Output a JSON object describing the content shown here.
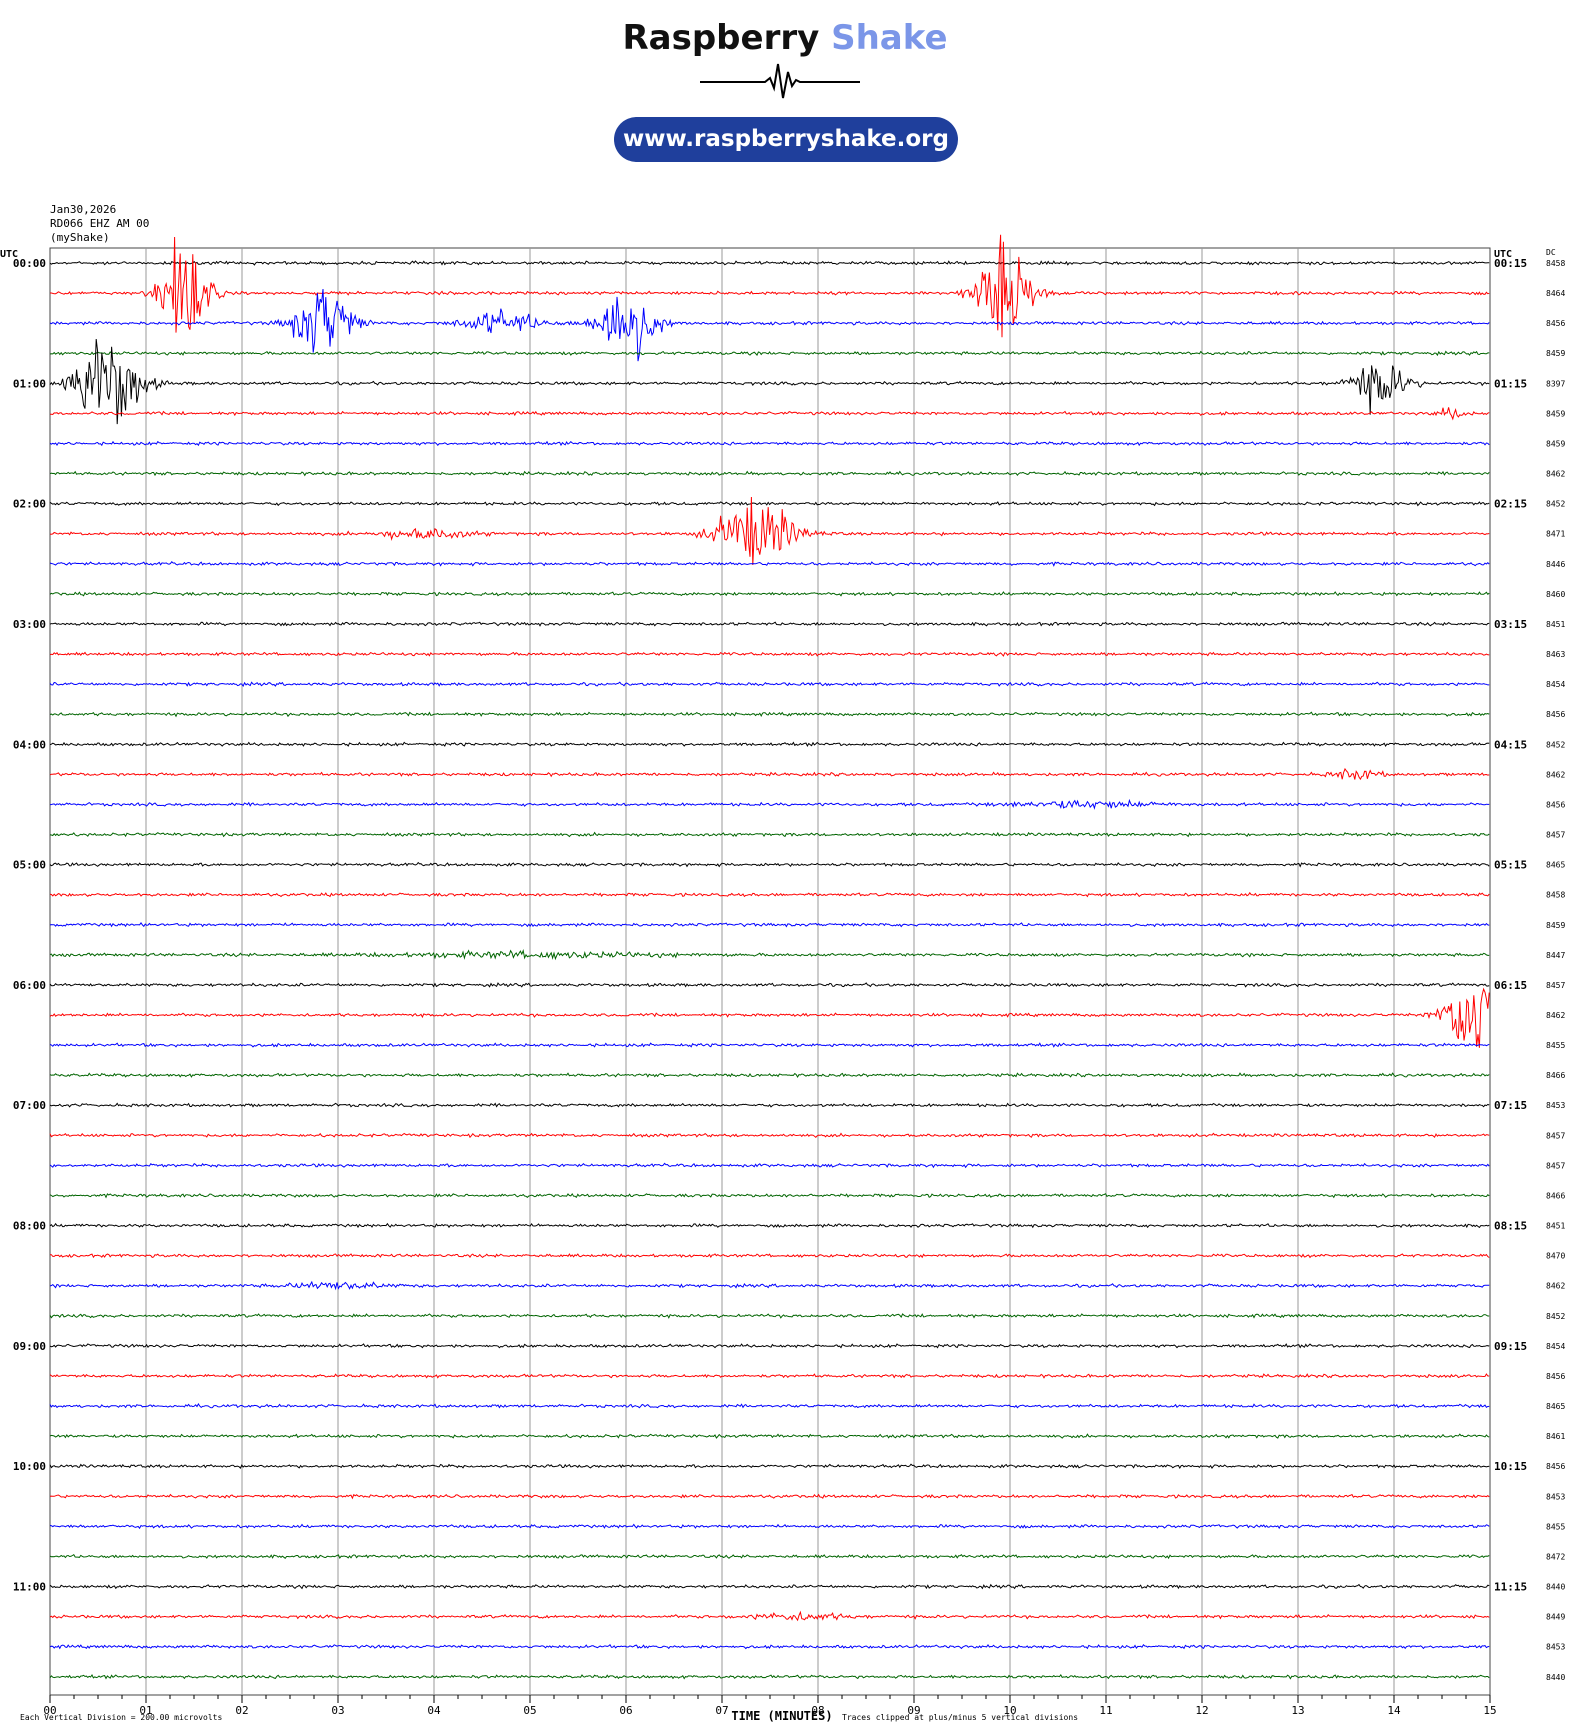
{
  "header": {
    "brand_part1": "Raspberry",
    "brand_part2": "Shake",
    "url": "www.raspberryshake.org"
  },
  "station": {
    "date": "Jan30,2026",
    "channel": "RD066 EHZ AM 00",
    "source": "(myShake)"
  },
  "axis": {
    "left_unit": "UTC",
    "right_unit": "UTC",
    "dc_label": "DC",
    "xlabel": "TIME (MINUTES)",
    "vertical_division_note": "Each Vertical Division =  200.00 microvolts",
    "clip_note": "Traces clipped at plus/minus 5 vertical divisions",
    "x_ticks": [
      "00",
      "01",
      "02",
      "03",
      "04",
      "05",
      "06",
      "07",
      "08",
      "09",
      "10",
      "11",
      "12",
      "13",
      "14",
      "15"
    ]
  },
  "colors": {
    "trace_cycle": [
      "#000000",
      "#ff0000",
      "#0000ff",
      "#006400"
    ],
    "grid": "#999999",
    "brand_blue": "#7b96e8",
    "pill": "#1f3f9c"
  },
  "chart_data": {
    "type": "line",
    "title": "",
    "x_range_minutes": [
      0,
      15
    ],
    "row_minutes": 15,
    "rows": 48,
    "left_hour_labels": [
      "00:00",
      "01:00",
      "02:00",
      "03:00",
      "04:00",
      "05:00",
      "06:00",
      "07:00",
      "08:00",
      "09:00",
      "10:00",
      "11:00"
    ],
    "right_hour_labels": [
      "00:15",
      "01:15",
      "02:15",
      "03:15",
      "04:15",
      "05:15",
      "06:15",
      "07:15",
      "08:15",
      "09:15",
      "10:15",
      "11:15"
    ],
    "dc_offsets": [
      8458,
      8464,
      8456,
      8459,
      8397,
      8459,
      8459,
      8462,
      8452,
      8471,
      8446,
      8460,
      8451,
      8463,
      8454,
      8456,
      8452,
      8462,
      8456,
      8457,
      8465,
      8458,
      8459,
      8447,
      8457,
      8462,
      8455,
      8466,
      8453,
      8457,
      8457,
      8466,
      8451,
      8470,
      8462,
      8452,
      8454,
      8456,
      8465,
      8461,
      8456,
      8453,
      8455,
      8472,
      8440,
      8449,
      8453,
      8440
    ],
    "events": [
      {
        "row": 1,
        "minute": 1.4,
        "amplitude": 3.2,
        "duration": 0.5
      },
      {
        "row": 2,
        "minute": 2.85,
        "amplitude": 2.3,
        "duration": 0.6
      },
      {
        "row": 2,
        "minute": 4.7,
        "amplitude": 0.7,
        "duration": 0.8
      },
      {
        "row": 2,
        "minute": 6.0,
        "amplitude": 2.5,
        "duration": 0.6
      },
      {
        "row": 1,
        "minute": 9.95,
        "amplitude": 2.8,
        "duration": 0.6
      },
      {
        "row": 4,
        "minute": 0.6,
        "amplitude": 3.0,
        "duration": 0.7
      },
      {
        "row": 4,
        "minute": 13.85,
        "amplitude": 1.4,
        "duration": 0.6
      },
      {
        "row": 5,
        "minute": 14.6,
        "amplitude": 0.3,
        "duration": 0.3
      },
      {
        "row": 9,
        "minute": 7.35,
        "amplitude": 2.0,
        "duration": 0.8
      },
      {
        "row": 9,
        "minute": 3.9,
        "amplitude": 0.3,
        "duration": 1.0
      },
      {
        "row": 17,
        "minute": 13.6,
        "amplitude": 0.3,
        "duration": 0.5
      },
      {
        "row": 18,
        "minute": 10.8,
        "amplitude": 0.2,
        "duration": 1.5
      },
      {
        "row": 23,
        "minute": 5.0,
        "amplitude": 0.15,
        "duration": 3.0
      },
      {
        "row": 25,
        "minute": 14.85,
        "amplitude": 3.0,
        "duration": 0.6
      },
      {
        "row": 34,
        "minute": 3.0,
        "amplitude": 0.2,
        "duration": 1.0
      },
      {
        "row": 45,
        "minute": 7.8,
        "amplitude": 0.2,
        "duration": 1.0
      }
    ]
  }
}
